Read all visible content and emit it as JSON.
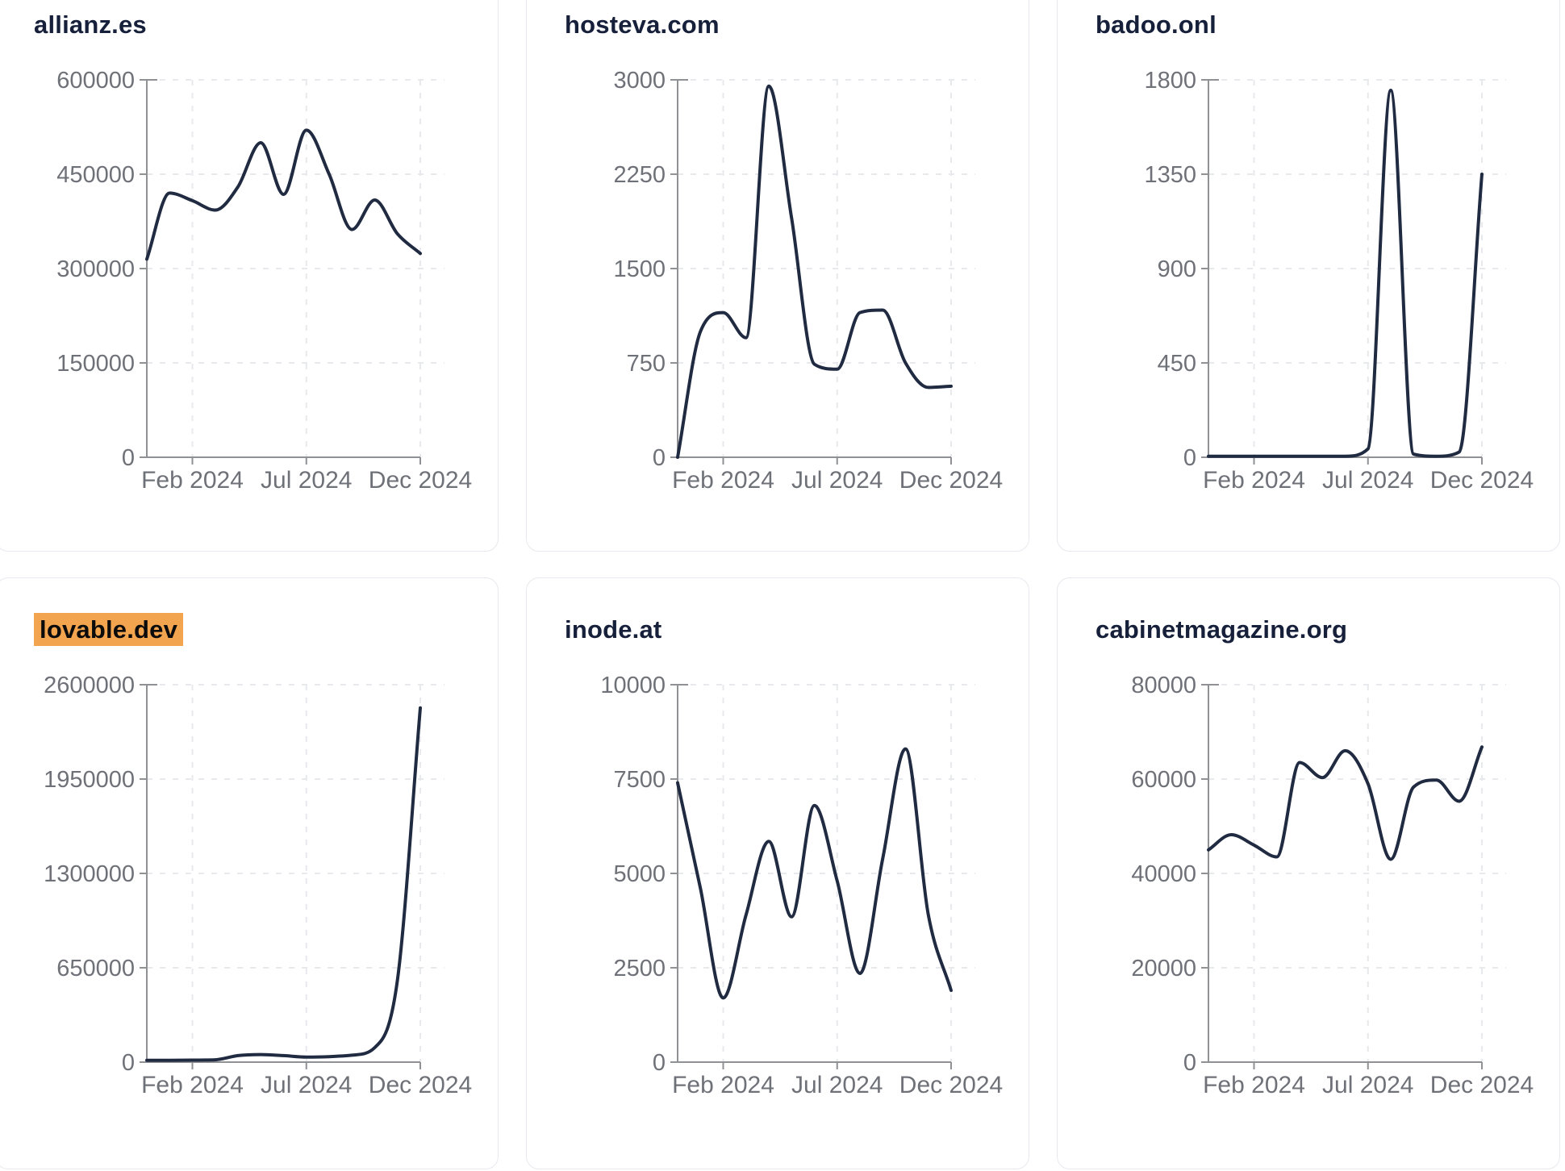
{
  "page": {
    "background": "#ffffff",
    "card_border_color": "#e7e9ee",
    "title_color": "#16203a",
    "highlight_color": "#f2a44f",
    "line_color": "#202b42",
    "axis_color": "#8f9195",
    "grid_color": "#e8e9ec",
    "tick_label_color": "#6e7177"
  },
  "chart_data": [
    {
      "type": "line",
      "title": "allianz.es",
      "highlighted": false,
      "x": [
        "Dec 2023",
        "Jan 2024",
        "Feb 2024",
        "Mar 2024",
        "Apr 2024",
        "May 2024",
        "Jun 2024",
        "Jul 2024",
        "Aug 2024",
        "Sep 2024",
        "Oct 2024",
        "Nov 2024",
        "Dec 2024"
      ],
      "values": [
        315000,
        420000,
        408000,
        393000,
        430000,
        500000,
        418000,
        520000,
        450000,
        362000,
        409000,
        355000,
        324000
      ],
      "y_ticks": [
        0,
        150000,
        300000,
        450000,
        600000
      ],
      "ylim": [
        0,
        600000
      ],
      "x_tick_labels": [
        "Feb 2024",
        "Jul 2024",
        "Dec 2024"
      ],
      "x_tick_indices": [
        2,
        7,
        12
      ],
      "grid": true,
      "legend": "none"
    },
    {
      "type": "line",
      "title": "hosteva.com",
      "highlighted": false,
      "x": [
        "Dec 2023",
        "Jan 2024",
        "Feb 2024",
        "Mar 2024",
        "Apr 2024",
        "May 2024",
        "Jun 2024",
        "Jul 2024",
        "Aug 2024",
        "Sep 2024",
        "Oct 2024",
        "Nov 2024",
        "Dec 2024"
      ],
      "values": [
        0,
        1000,
        1150,
        950,
        2950,
        1900,
        740,
        700,
        1150,
        1170,
        750,
        555,
        565
      ],
      "y_ticks": [
        0,
        750,
        1500,
        2250,
        3000
      ],
      "ylim": [
        0,
        3000
      ],
      "x_tick_labels": [
        "Feb 2024",
        "Jul 2024",
        "Dec 2024"
      ],
      "x_tick_indices": [
        2,
        7,
        12
      ],
      "grid": true,
      "legend": "none"
    },
    {
      "type": "line",
      "title": "badoo.onl",
      "highlighted": false,
      "x": [
        "Dec 2023",
        "Jan 2024",
        "Feb 2024",
        "Mar 2024",
        "Apr 2024",
        "May 2024",
        "Jun 2024",
        "Jul 2024",
        "Aug 2024",
        "Sep 2024",
        "Oct 2024",
        "Nov 2024",
        "Dec 2024"
      ],
      "values": [
        5,
        5,
        5,
        5,
        5,
        5,
        5,
        40,
        1750,
        15,
        5,
        25,
        1350
      ],
      "y_ticks": [
        0,
        450,
        900,
        1350,
        1800
      ],
      "ylim": [
        0,
        1800
      ],
      "x_tick_labels": [
        "Feb 2024",
        "Jul 2024",
        "Dec 2024"
      ],
      "x_tick_indices": [
        2,
        7,
        12
      ],
      "grid": true,
      "legend": "none"
    },
    {
      "type": "line",
      "title": "lovable.dev",
      "highlighted": true,
      "x": [
        "Dec 2023",
        "Jan 2024",
        "Feb 2024",
        "Mar 2024",
        "Apr 2024",
        "May 2024",
        "Jun 2024",
        "Jul 2024",
        "Aug 2024",
        "Sep 2024",
        "Oct 2024",
        "Nov 2024",
        "Dec 2024"
      ],
      "values": [
        12000,
        13000,
        14000,
        16000,
        45000,
        52000,
        45000,
        35000,
        38000,
        48000,
        100000,
        570000,
        2440000
      ],
      "y_ticks": [
        0,
        650000,
        1300000,
        1950000,
        2600000
      ],
      "ylim": [
        0,
        2600000
      ],
      "x_tick_labels": [
        "Feb 2024",
        "Jul 2024",
        "Dec 2024"
      ],
      "x_tick_indices": [
        2,
        7,
        12
      ],
      "grid": true,
      "legend": "none"
    },
    {
      "type": "line",
      "title": "inode.at",
      "highlighted": false,
      "x": [
        "Dec 2023",
        "Jan 2024",
        "Feb 2024",
        "Mar 2024",
        "Apr 2024",
        "May 2024",
        "Jun 2024",
        "Jul 2024",
        "Aug 2024",
        "Sep 2024",
        "Oct 2024",
        "Nov 2024",
        "Dec 2024"
      ],
      "values": [
        7400,
        4600,
        1700,
        3900,
        5850,
        3850,
        6800,
        4800,
        2350,
        5400,
        8300,
        3900,
        1900
      ],
      "y_ticks": [
        0,
        2500,
        5000,
        7500,
        10000
      ],
      "ylim": [
        0,
        10000
      ],
      "x_tick_labels": [
        "Feb 2024",
        "Jul 2024",
        "Dec 2024"
      ],
      "x_tick_indices": [
        2,
        7,
        12
      ],
      "grid": true,
      "legend": "none"
    },
    {
      "type": "line",
      "title": "cabinetmagazine.org",
      "highlighted": false,
      "x": [
        "Dec 2023",
        "Jan 2024",
        "Feb 2024",
        "Mar 2024",
        "Apr 2024",
        "May 2024",
        "Jun 2024",
        "Jul 2024",
        "Aug 2024",
        "Sep 2024",
        "Oct 2024",
        "Nov 2024",
        "Dec 2024"
      ],
      "values": [
        45000,
        48200,
        46000,
        43500,
        63500,
        60300,
        66000,
        59000,
        43000,
        58300,
        59800,
        55300,
        66800
      ],
      "y_ticks": [
        0,
        20000,
        40000,
        60000,
        80000
      ],
      "ylim": [
        0,
        80000
      ],
      "x_tick_labels": [
        "Feb 2024",
        "Jul 2024",
        "Dec 2024"
      ],
      "x_tick_indices": [
        2,
        7,
        12
      ],
      "grid": true,
      "legend": "none"
    }
  ]
}
